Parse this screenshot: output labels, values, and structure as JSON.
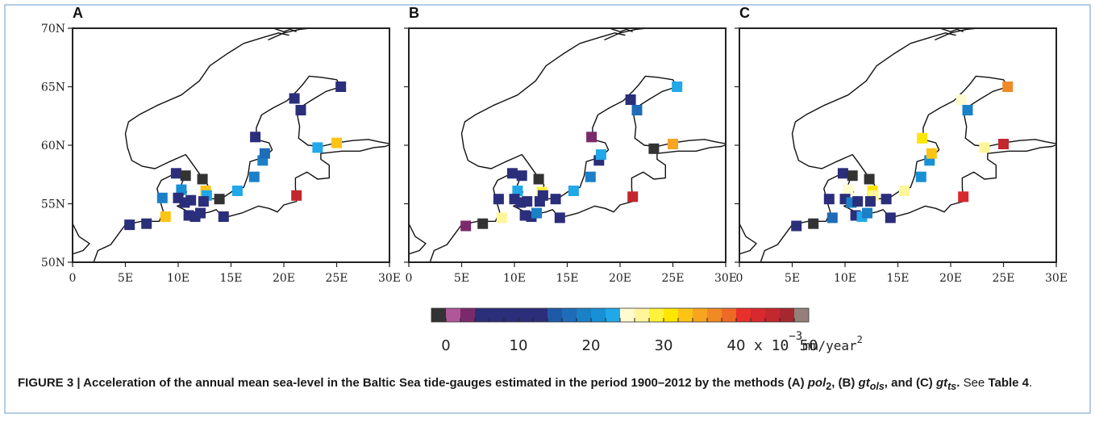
{
  "caption": {
    "label": "FIGURE 3 | ",
    "text_main": "Acceleration of the annual mean sea-level in the Baltic Sea tide-gauges estimated in the period 1900–2012 by the methods (A) ",
    "m1": "pol",
    "m1_sub": "2",
    "sep1": ", (B) ",
    "m2": "gt",
    "m2_sub": "ols",
    "sep2": ", and (C) ",
    "m3": "gt",
    "m3_sub": "ts",
    "end": ".",
    "see": " See ",
    "table_ref": "Table 4",
    "final": "."
  },
  "colorbar": {
    "colors": [
      "#333333",
      "#b0579a",
      "#7a2a6b",
      "#2b2e7a",
      "#2b2e7a",
      "#2b2e7a",
      "#2b2e7a",
      "#2b2e7a",
      "#1e5aa8",
      "#1f6cb8",
      "#1a80c8",
      "#1890d6",
      "#20a8e8",
      "#fffbd0",
      "#fff59a",
      "#fff23c",
      "#ffe600",
      "#fcc417",
      "#f7a520",
      "#f08a24",
      "#ec6a26",
      "#e8302c",
      "#d82a2e",
      "#c3272f",
      "#a6282f",
      "#948079"
    ],
    "ticks": [
      0,
      10,
      20,
      30,
      40,
      50
    ],
    "unit_prefix": "x 10",
    "unit_exp": "−3",
    "unit_suffix": "mm/year",
    "unit_sup2": "2"
  },
  "chart_data": {
    "type": "scatter",
    "xlim": [
      0,
      30
    ],
    "ylim": [
      50,
      70
    ],
    "xticks": [
      "0",
      "5E",
      "10E",
      "15E",
      "20E",
      "25E",
      "30E"
    ],
    "yticks": [
      "50N",
      "55N",
      "60N",
      "65N",
      "70N"
    ],
    "panels": [
      {
        "label": "A",
        "points": [
          {
            "lon": 5.4,
            "lat": 53.2,
            "color": "#2b2e7a"
          },
          {
            "lon": 7.0,
            "lat": 53.3,
            "color": "#2b2e7a"
          },
          {
            "lon": 8.8,
            "lat": 53.9,
            "color": "#fcc417"
          },
          {
            "lon": 8.5,
            "lat": 55.5,
            "color": "#1a80c8"
          },
          {
            "lon": 9.8,
            "lat": 57.6,
            "color": "#2b2e7a"
          },
          {
            "lon": 10.7,
            "lat": 57.4,
            "color": "#333333"
          },
          {
            "lon": 10.3,
            "lat": 56.2,
            "color": "#1890d6"
          },
          {
            "lon": 10.0,
            "lat": 55.5,
            "color": "#2b2e7a"
          },
          {
            "lon": 10.6,
            "lat": 55.1,
            "color": "#2b2e7a"
          },
          {
            "lon": 11.2,
            "lat": 55.3,
            "color": "#2b2e7a"
          },
          {
            "lon": 11.0,
            "lat": 54.0,
            "color": "#2b2e7a"
          },
          {
            "lon": 11.6,
            "lat": 53.9,
            "color": "#2b2e7a"
          },
          {
            "lon": 12.1,
            "lat": 54.2,
            "color": "#2b2e7a"
          },
          {
            "lon": 12.3,
            "lat": 57.1,
            "color": "#333333"
          },
          {
            "lon": 12.6,
            "lat": 56.1,
            "color": "#fcc417"
          },
          {
            "lon": 12.7,
            "lat": 55.7,
            "color": "#20a8e8"
          },
          {
            "lon": 12.4,
            "lat": 55.2,
            "color": "#2b2e7a"
          },
          {
            "lon": 13.9,
            "lat": 55.4,
            "color": "#333333"
          },
          {
            "lon": 14.3,
            "lat": 53.9,
            "color": "#2b2e7a"
          },
          {
            "lon": 15.6,
            "lat": 56.1,
            "color": "#20a8e8"
          },
          {
            "lon": 17.2,
            "lat": 57.3,
            "color": "#1a80c8"
          },
          {
            "lon": 17.3,
            "lat": 60.7,
            "color": "#2b2e7a"
          },
          {
            "lon": 18.0,
            "lat": 58.7,
            "color": "#1a80c8"
          },
          {
            "lon": 18.2,
            "lat": 59.3,
            "color": "#1f6cb8"
          },
          {
            "lon": 21.0,
            "lat": 64.0,
            "color": "#2b2e7a"
          },
          {
            "lon": 21.6,
            "lat": 63.0,
            "color": "#2b2e7a"
          },
          {
            "lon": 25.4,
            "lat": 65.0,
            "color": "#2b2e7a"
          },
          {
            "lon": 23.2,
            "lat": 59.8,
            "color": "#20a8e8"
          },
          {
            "lon": 25.0,
            "lat": 60.2,
            "color": "#fcc417"
          },
          {
            "lon": 21.2,
            "lat": 55.7,
            "color": "#c3272f"
          }
        ]
      },
      {
        "label": "B",
        "points": [
          {
            "lon": 5.4,
            "lat": 53.1,
            "color": "#7a2a6b"
          },
          {
            "lon": 7.0,
            "lat": 53.3,
            "color": "#333333"
          },
          {
            "lon": 8.8,
            "lat": 53.8,
            "color": "#fff59a"
          },
          {
            "lon": 8.5,
            "lat": 55.4,
            "color": "#2b2e7a"
          },
          {
            "lon": 9.8,
            "lat": 57.6,
            "color": "#2b2e7a"
          },
          {
            "lon": 10.7,
            "lat": 57.4,
            "color": "#2b2e7a"
          },
          {
            "lon": 10.3,
            "lat": 56.1,
            "color": "#20a8e8"
          },
          {
            "lon": 10.0,
            "lat": 55.4,
            "color": "#2b2e7a"
          },
          {
            "lon": 10.6,
            "lat": 55.1,
            "color": "#2b2e7a"
          },
          {
            "lon": 11.2,
            "lat": 55.2,
            "color": "#2b2e7a"
          },
          {
            "lon": 11.0,
            "lat": 54.0,
            "color": "#2b2e7a"
          },
          {
            "lon": 11.6,
            "lat": 53.9,
            "color": "#2b2e7a"
          },
          {
            "lon": 12.1,
            "lat": 54.2,
            "color": "#1a80c8"
          },
          {
            "lon": 12.3,
            "lat": 57.1,
            "color": "#333333"
          },
          {
            "lon": 12.6,
            "lat": 56.0,
            "color": "#fff23c"
          },
          {
            "lon": 12.7,
            "lat": 55.7,
            "color": "#2b2e7a"
          },
          {
            "lon": 12.4,
            "lat": 55.2,
            "color": "#2b2e7a"
          },
          {
            "lon": 13.9,
            "lat": 55.4,
            "color": "#2b2e7a"
          },
          {
            "lon": 14.3,
            "lat": 53.8,
            "color": "#2b2e7a"
          },
          {
            "lon": 15.6,
            "lat": 56.1,
            "color": "#20a8e8"
          },
          {
            "lon": 17.2,
            "lat": 57.3,
            "color": "#1a80c8"
          },
          {
            "lon": 17.3,
            "lat": 60.7,
            "color": "#7a2a6b"
          },
          {
            "lon": 18.0,
            "lat": 58.7,
            "color": "#2b2e7a"
          },
          {
            "lon": 18.2,
            "lat": 59.2,
            "color": "#20a8e8"
          },
          {
            "lon": 21.0,
            "lat": 63.9,
            "color": "#2b2e7a"
          },
          {
            "lon": 21.6,
            "lat": 63.0,
            "color": "#1f6cb8"
          },
          {
            "lon": 25.4,
            "lat": 65.0,
            "color": "#20a8e8"
          },
          {
            "lon": 23.2,
            "lat": 59.7,
            "color": "#333333"
          },
          {
            "lon": 25.0,
            "lat": 60.1,
            "color": "#f7a520"
          },
          {
            "lon": 21.2,
            "lat": 55.6,
            "color": "#c3272f"
          }
        ]
      },
      {
        "label": "C",
        "points": [
          {
            "lon": 5.4,
            "lat": 53.1,
            "color": "#2b2e7a"
          },
          {
            "lon": 7.0,
            "lat": 53.3,
            "color": "#333333"
          },
          {
            "lon": 8.8,
            "lat": 53.8,
            "color": "#1f6cb8"
          },
          {
            "lon": 8.5,
            "lat": 55.4,
            "color": "#2b2e7a"
          },
          {
            "lon": 9.8,
            "lat": 57.6,
            "color": "#2b2e7a"
          },
          {
            "lon": 10.7,
            "lat": 57.4,
            "color": "#333333"
          },
          {
            "lon": 10.3,
            "lat": 56.2,
            "color": "#fffbd0"
          },
          {
            "lon": 10.0,
            "lat": 55.4,
            "color": "#2b2e7a"
          },
          {
            "lon": 10.6,
            "lat": 55.1,
            "color": "#1a80c8"
          },
          {
            "lon": 11.2,
            "lat": 55.2,
            "color": "#2b2e7a"
          },
          {
            "lon": 11.0,
            "lat": 54.0,
            "color": "#2b2e7a"
          },
          {
            "lon": 11.6,
            "lat": 53.9,
            "color": "#20a8e8"
          },
          {
            "lon": 12.1,
            "lat": 54.2,
            "color": "#1a80c8"
          },
          {
            "lon": 12.3,
            "lat": 57.1,
            "color": "#333333"
          },
          {
            "lon": 12.6,
            "lat": 56.1,
            "color": "#ffe600"
          },
          {
            "lon": 12.7,
            "lat": 55.7,
            "color": "#fff59a"
          },
          {
            "lon": 12.4,
            "lat": 55.2,
            "color": "#2b2e7a"
          },
          {
            "lon": 13.9,
            "lat": 55.4,
            "color": "#2b2e7a"
          },
          {
            "lon": 14.3,
            "lat": 53.8,
            "color": "#2b2e7a"
          },
          {
            "lon": 15.6,
            "lat": 56.1,
            "color": "#fff59a"
          },
          {
            "lon": 17.2,
            "lat": 57.3,
            "color": "#1890d6"
          },
          {
            "lon": 17.3,
            "lat": 60.6,
            "color": "#ffe600"
          },
          {
            "lon": 18.0,
            "lat": 58.7,
            "color": "#1890d6"
          },
          {
            "lon": 18.2,
            "lat": 59.3,
            "color": "#fcc417"
          },
          {
            "lon": 21.0,
            "lat": 63.9,
            "color": "#fffbd0"
          },
          {
            "lon": 21.6,
            "lat": 63.0,
            "color": "#1a80c8"
          },
          {
            "lon": 25.4,
            "lat": 65.0,
            "color": "#f08a24"
          },
          {
            "lon": 23.2,
            "lat": 59.8,
            "color": "#fff59a"
          },
          {
            "lon": 25.0,
            "lat": 60.1,
            "color": "#c3272f"
          },
          {
            "lon": 21.2,
            "lat": 55.6,
            "color": "#d82a2e"
          }
        ]
      }
    ]
  }
}
